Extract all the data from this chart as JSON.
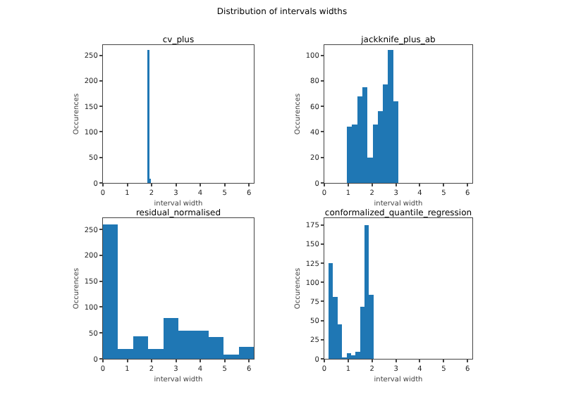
{
  "chart_data": [
    {
      "type": "histogram",
      "title": "cv_plus",
      "xlabel": "interval width",
      "ylabel": "Occurences",
      "color": "#1f77b4",
      "bins": [
        1.82,
        1.9,
        1.98
      ],
      "values": [
        260,
        8
      ],
      "xlim": [
        0,
        6.2
      ],
      "xticks": [
        0,
        1,
        2,
        3,
        4,
        5,
        6
      ],
      "ylim": [
        0,
        270
      ],
      "yticks": [
        0,
        50,
        100,
        150,
        200,
        250
      ],
      "annotations": [
        "Distribution of intervals widths"
      ]
    },
    {
      "type": "histogram",
      "title": "jackknife_plus_ab",
      "xlabel": "interval width",
      "ylabel": "Occurences",
      "color": "#1f77b4",
      "bins": [
        0.95,
        1.165,
        1.38,
        1.595,
        1.81,
        2.025,
        2.24,
        2.455,
        2.67,
        2.885,
        3.1
      ],
      "values": [
        44,
        46,
        68,
        75,
        20,
        46,
        56,
        77,
        104,
        64
      ],
      "xlim": [
        0,
        6.2
      ],
      "xticks": [
        0,
        1,
        2,
        3,
        4,
        5,
        6
      ],
      "ylim": [
        0,
        108
      ],
      "yticks": [
        0,
        20,
        40,
        60,
        80,
        100
      ]
    },
    {
      "type": "histogram",
      "title": "residual_normalised",
      "xlabel": "interval width",
      "ylabel": "Occurences",
      "color": "#1f77b4",
      "bins": [
        0,
        0.62,
        1.24,
        1.86,
        2.48,
        3.1,
        3.72,
        4.34,
        4.96,
        5.58,
        6.2
      ],
      "values": [
        260,
        19,
        43,
        19,
        79,
        55,
        54,
        42,
        8,
        23
      ],
      "xlim": [
        0,
        6.2
      ],
      "xticks": [
        0,
        1,
        2,
        3,
        4,
        5,
        6
      ],
      "ylim": [
        0,
        272
      ],
      "yticks": [
        0,
        50,
        100,
        150,
        200,
        250
      ]
    },
    {
      "type": "histogram",
      "title": "conformalized_quantile_regression",
      "xlabel": "interval width",
      "ylabel": "Occurences",
      "color": "#1f77b4",
      "bins": [
        0.18,
        0.368,
        0.556,
        0.744,
        0.932,
        1.12,
        1.308,
        1.496,
        1.684,
        1.872,
        2.06
      ],
      "values": [
        125,
        81,
        45,
        2,
        7,
        5,
        9,
        68,
        175,
        84
      ],
      "xlim": [
        0,
        6.2
      ],
      "xticks": [
        0,
        1,
        2,
        3,
        4,
        5,
        6
      ],
      "ylim": [
        0,
        184
      ],
      "yticks": [
        0,
        25,
        50,
        75,
        100,
        125,
        150,
        175
      ]
    }
  ]
}
